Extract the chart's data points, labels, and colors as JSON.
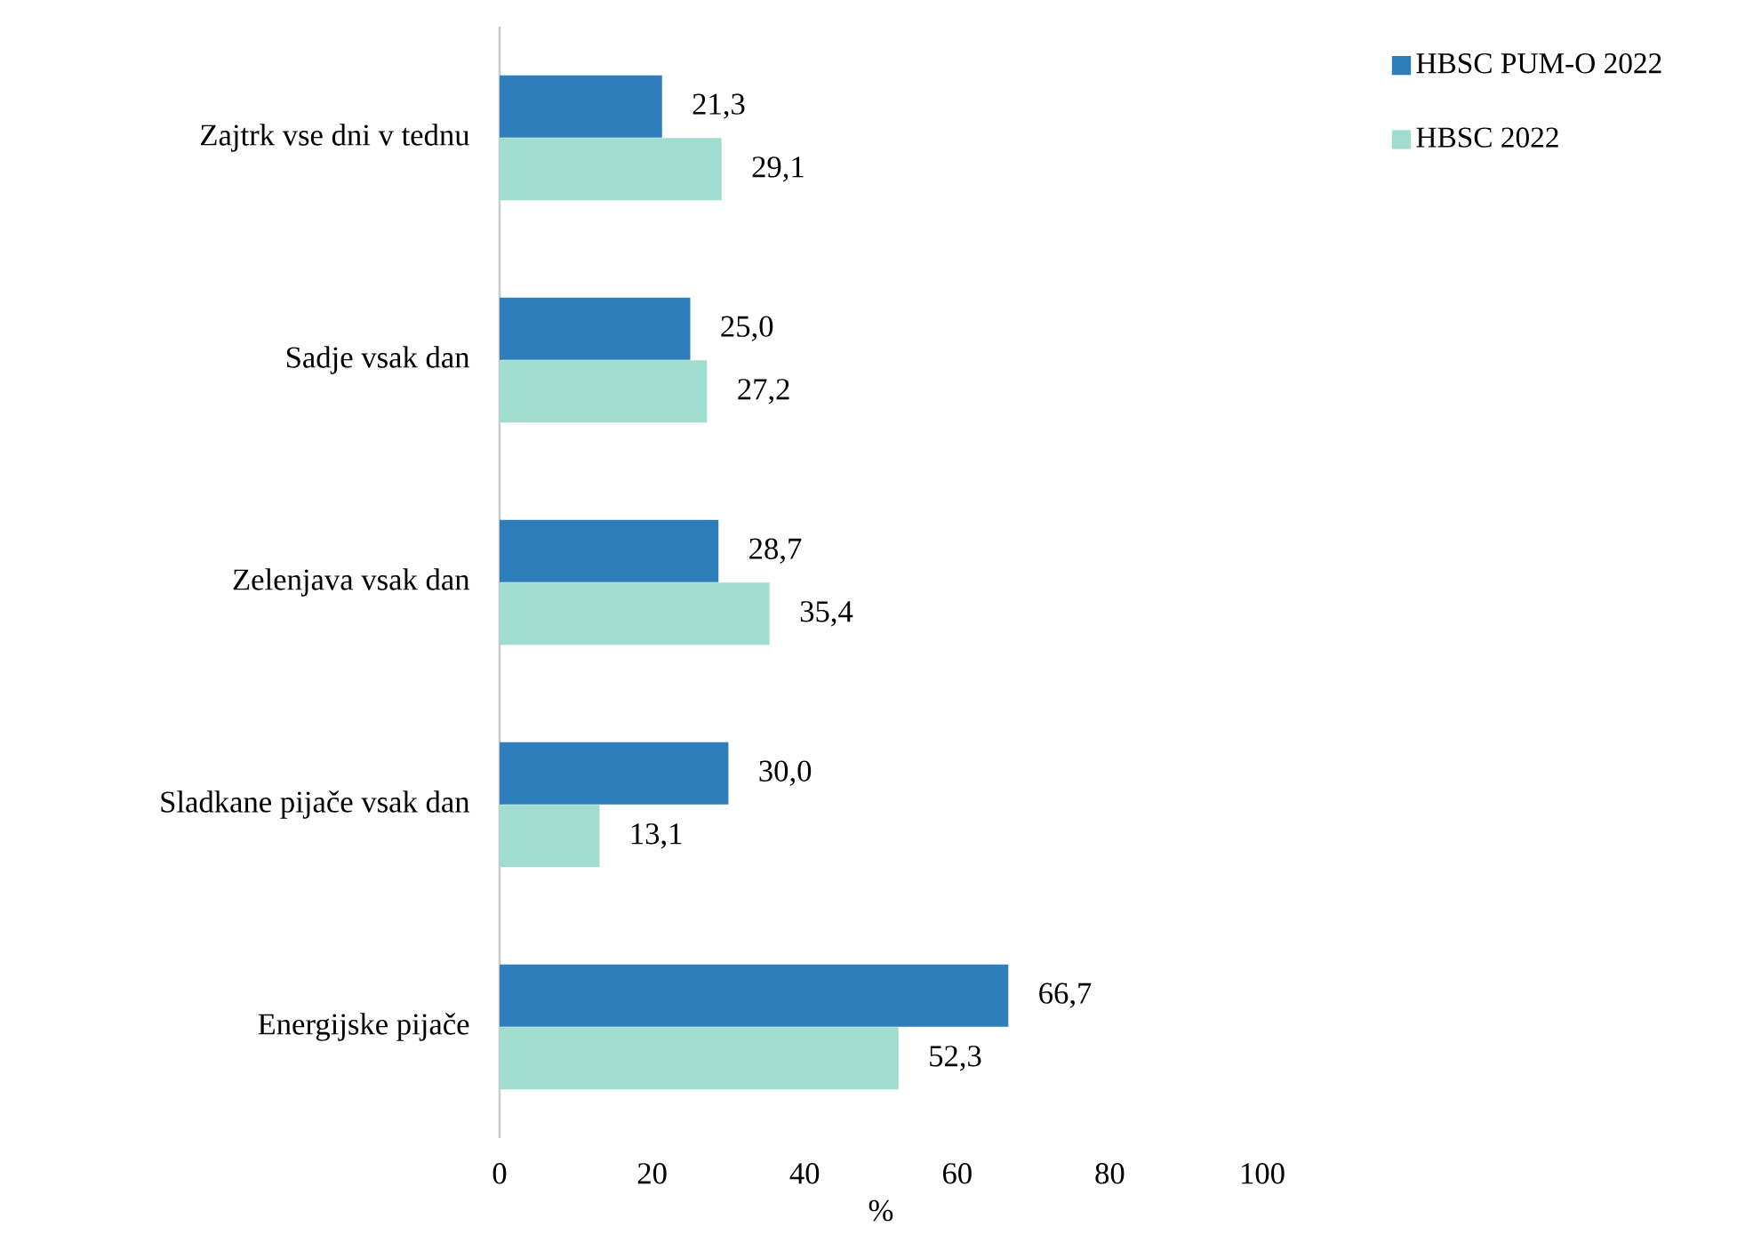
{
  "chart_data": {
    "type": "bar",
    "orientation": "horizontal",
    "xlabel": "%",
    "categories": [
      "Zajtrk vse dni v tednu",
      "Sadje vsak dan",
      "Zelenjava vsak dan",
      "Sladkane pijače vsak dan",
      "Energijske pijače"
    ],
    "series": [
      {
        "name": "HBSC PUM-O 2022",
        "color": "#2e7ebc",
        "values": [
          21.3,
          25.0,
          28.7,
          30.0,
          66.7
        ],
        "value_labels": [
          "21,3",
          "25,0",
          "28,7",
          "30,0",
          "66,7"
        ]
      },
      {
        "name": "HBSC 2022",
        "color": "#a0ddd0",
        "values": [
          29.1,
          27.2,
          35.4,
          13.1,
          52.3
        ],
        "value_labels": [
          "29,1",
          "27,2",
          "35,4",
          "13,1",
          "52,3"
        ]
      }
    ],
    "xlim": [
      0,
      100
    ],
    "xticks": [
      0,
      20,
      40,
      60,
      80,
      100
    ],
    "grid": false,
    "legend": "top right"
  }
}
